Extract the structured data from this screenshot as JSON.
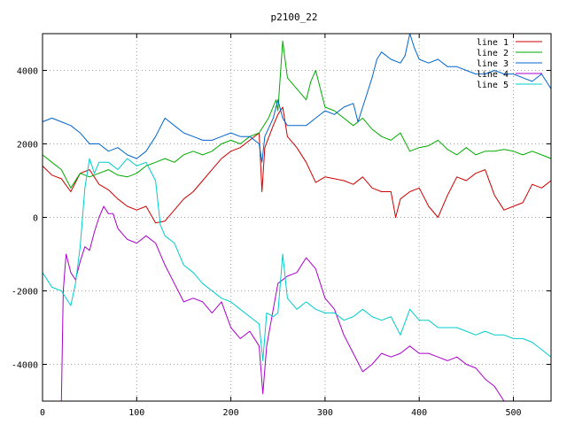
{
  "chart_data": {
    "type": "line",
    "title": "p2100_22",
    "xlim": [
      0,
      540
    ],
    "ylim": [
      -5000,
      5000
    ],
    "xticks": [
      0,
      100,
      200,
      300,
      400,
      500
    ],
    "yticks": [
      -4000,
      -2000,
      0,
      2000,
      4000
    ],
    "grid": true,
    "legend_position": "top-right",
    "series": [
      {
        "name": "line 1",
        "color": "#cc0000",
        "points": [
          [
            0,
            1400
          ],
          [
            10,
            1150
          ],
          [
            20,
            1050
          ],
          [
            30,
            700
          ],
          [
            40,
            1200
          ],
          [
            50,
            1300
          ],
          [
            60,
            900
          ],
          [
            70,
            750
          ],
          [
            80,
            500
          ],
          [
            90,
            300
          ],
          [
            100,
            200
          ],
          [
            110,
            300
          ],
          [
            120,
            -150
          ],
          [
            130,
            -100
          ],
          [
            140,
            200
          ],
          [
            150,
            500
          ],
          [
            160,
            700
          ],
          [
            170,
            1000
          ],
          [
            180,
            1300
          ],
          [
            190,
            1600
          ],
          [
            200,
            1800
          ],
          [
            210,
            1900
          ],
          [
            220,
            2100
          ],
          [
            230,
            2300
          ],
          [
            233,
            700
          ],
          [
            236,
            1900
          ],
          [
            245,
            2500
          ],
          [
            250,
            2800
          ],
          [
            255,
            3000
          ],
          [
            260,
            2200
          ],
          [
            270,
            1900
          ],
          [
            280,
            1500
          ],
          [
            290,
            950
          ],
          [
            300,
            1100
          ],
          [
            310,
            1050
          ],
          [
            320,
            1000
          ],
          [
            330,
            900
          ],
          [
            340,
            1100
          ],
          [
            350,
            800
          ],
          [
            360,
            700
          ],
          [
            370,
            700
          ],
          [
            375,
            0
          ],
          [
            380,
            500
          ],
          [
            390,
            700
          ],
          [
            400,
            800
          ],
          [
            410,
            300
          ],
          [
            420,
            0
          ],
          [
            430,
            600
          ],
          [
            440,
            1100
          ],
          [
            450,
            1000
          ],
          [
            460,
            1200
          ],
          [
            470,
            1300
          ],
          [
            480,
            600
          ],
          [
            490,
            200
          ],
          [
            500,
            300
          ],
          [
            510,
            400
          ],
          [
            520,
            900
          ],
          [
            530,
            800
          ],
          [
            540,
            1000
          ]
        ]
      },
      {
        "name": "line 2",
        "color": "#00aa00",
        "points": [
          [
            0,
            1700
          ],
          [
            10,
            1500
          ],
          [
            20,
            1300
          ],
          [
            30,
            800
          ],
          [
            40,
            1200
          ],
          [
            50,
            1100
          ],
          [
            60,
            1200
          ],
          [
            70,
            1300
          ],
          [
            80,
            1150
          ],
          [
            90,
            1100
          ],
          [
            100,
            1200
          ],
          [
            110,
            1400
          ],
          [
            120,
            1500
          ],
          [
            130,
            1600
          ],
          [
            140,
            1500
          ],
          [
            150,
            1700
          ],
          [
            160,
            1800
          ],
          [
            170,
            1700
          ],
          [
            180,
            1800
          ],
          [
            190,
            2000
          ],
          [
            200,
            2100
          ],
          [
            210,
            2000
          ],
          [
            220,
            2200
          ],
          [
            230,
            2300
          ],
          [
            240,
            2700
          ],
          [
            248,
            3200
          ],
          [
            250,
            2900
          ],
          [
            255,
            4800
          ],
          [
            260,
            3800
          ],
          [
            270,
            3500
          ],
          [
            280,
            3200
          ],
          [
            285,
            3700
          ],
          [
            290,
            4000
          ],
          [
            300,
            3000
          ],
          [
            310,
            2900
          ],
          [
            320,
            2700
          ],
          [
            330,
            2500
          ],
          [
            340,
            2700
          ],
          [
            350,
            2400
          ],
          [
            360,
            2200
          ],
          [
            370,
            2100
          ],
          [
            380,
            2300
          ],
          [
            390,
            1800
          ],
          [
            400,
            1900
          ],
          [
            410,
            1950
          ],
          [
            420,
            2100
          ],
          [
            430,
            1850
          ],
          [
            440,
            1700
          ],
          [
            450,
            1900
          ],
          [
            460,
            1700
          ],
          [
            470,
            1800
          ],
          [
            480,
            1800
          ],
          [
            490,
            1850
          ],
          [
            500,
            1800
          ],
          [
            510,
            1700
          ],
          [
            520,
            1800
          ],
          [
            530,
            1700
          ],
          [
            540,
            1600
          ]
        ]
      },
      {
        "name": "line 3",
        "color": "#0066cc",
        "points": [
          [
            0,
            2600
          ],
          [
            10,
            2700
          ],
          [
            20,
            2600
          ],
          [
            30,
            2500
          ],
          [
            40,
            2300
          ],
          [
            50,
            2000
          ],
          [
            60,
            2000
          ],
          [
            70,
            1800
          ],
          [
            80,
            1900
          ],
          [
            90,
            1700
          ],
          [
            100,
            1600
          ],
          [
            110,
            1800
          ],
          [
            120,
            2200
          ],
          [
            130,
            2700
          ],
          [
            140,
            2500
          ],
          [
            150,
            2300
          ],
          [
            160,
            2200
          ],
          [
            170,
            2100
          ],
          [
            180,
            2100
          ],
          [
            190,
            2200
          ],
          [
            200,
            2300
          ],
          [
            210,
            2200
          ],
          [
            220,
            2200
          ],
          [
            230,
            2000
          ],
          [
            233,
            1500
          ],
          [
            236,
            2200
          ],
          [
            245,
            2700
          ],
          [
            250,
            3200
          ],
          [
            255,
            2700
          ],
          [
            260,
            2500
          ],
          [
            270,
            2500
          ],
          [
            280,
            2500
          ],
          [
            290,
            2700
          ],
          [
            300,
            2900
          ],
          [
            310,
            2800
          ],
          [
            320,
            3000
          ],
          [
            330,
            3100
          ],
          [
            335,
            2600
          ],
          [
            340,
            3000
          ],
          [
            350,
            3800
          ],
          [
            355,
            4300
          ],
          [
            360,
            4500
          ],
          [
            370,
            4300
          ],
          [
            380,
            4200
          ],
          [
            385,
            4400
          ],
          [
            390,
            5000
          ],
          [
            395,
            4600
          ],
          [
            400,
            4300
          ],
          [
            410,
            4200
          ],
          [
            420,
            4300
          ],
          [
            430,
            4100
          ],
          [
            440,
            4100
          ],
          [
            450,
            4000
          ],
          [
            460,
            3900
          ],
          [
            470,
            3900
          ],
          [
            480,
            4000
          ],
          [
            490,
            3900
          ],
          [
            500,
            3900
          ],
          [
            510,
            3800
          ],
          [
            520,
            3700
          ],
          [
            530,
            3900
          ],
          [
            540,
            3500
          ]
        ]
      },
      {
        "name": "line 4",
        "color": "#aa00cc",
        "points": [
          [
            20,
            -5000
          ],
          [
            22,
            -2000
          ],
          [
            25,
            -1000
          ],
          [
            30,
            -1500
          ],
          [
            35,
            -1700
          ],
          [
            40,
            -1200
          ],
          [
            45,
            -800
          ],
          [
            50,
            -900
          ],
          [
            55,
            -400
          ],
          [
            60,
            0
          ],
          [
            65,
            300
          ],
          [
            70,
            100
          ],
          [
            75,
            100
          ],
          [
            80,
            -300
          ],
          [
            90,
            -600
          ],
          [
            100,
            -700
          ],
          [
            110,
            -500
          ],
          [
            120,
            -700
          ],
          [
            130,
            -1300
          ],
          [
            140,
            -1800
          ],
          [
            150,
            -2300
          ],
          [
            160,
            -2200
          ],
          [
            170,
            -2300
          ],
          [
            180,
            -2600
          ],
          [
            190,
            -2300
          ],
          [
            200,
            -3000
          ],
          [
            210,
            -3300
          ],
          [
            220,
            -3100
          ],
          [
            230,
            -3500
          ],
          [
            234,
            -4800
          ],
          [
            238,
            -3500
          ],
          [
            245,
            -2500
          ],
          [
            250,
            -1800
          ],
          [
            260,
            -1600
          ],
          [
            270,
            -1500
          ],
          [
            280,
            -1100
          ],
          [
            290,
            -1400
          ],
          [
            300,
            -2200
          ],
          [
            310,
            -2500
          ],
          [
            320,
            -3200
          ],
          [
            330,
            -3700
          ],
          [
            340,
            -4200
          ],
          [
            350,
            -4000
          ],
          [
            360,
            -3700
          ],
          [
            370,
            -3800
          ],
          [
            380,
            -3700
          ],
          [
            390,
            -3500
          ],
          [
            400,
            -3700
          ],
          [
            410,
            -3700
          ],
          [
            420,
            -3800
          ],
          [
            430,
            -3900
          ],
          [
            440,
            -3800
          ],
          [
            450,
            -4000
          ],
          [
            460,
            -4100
          ],
          [
            470,
            -4400
          ],
          [
            480,
            -4600
          ],
          [
            490,
            -5000
          ]
        ]
      },
      {
        "name": "line 5",
        "color": "#00cccc",
        "points": [
          [
            0,
            -1500
          ],
          [
            10,
            -1900
          ],
          [
            20,
            -2000
          ],
          [
            30,
            -2400
          ],
          [
            35,
            -1800
          ],
          [
            40,
            -800
          ],
          [
            45,
            800
          ],
          [
            50,
            1600
          ],
          [
            55,
            1200
          ],
          [
            60,
            1500
          ],
          [
            70,
            1500
          ],
          [
            80,
            1300
          ],
          [
            90,
            1600
          ],
          [
            100,
            1400
          ],
          [
            110,
            1500
          ],
          [
            120,
            1000
          ],
          [
            125,
            -200
          ],
          [
            130,
            -500
          ],
          [
            140,
            -700
          ],
          [
            150,
            -1300
          ],
          [
            160,
            -1500
          ],
          [
            170,
            -1800
          ],
          [
            180,
            -2000
          ],
          [
            190,
            -2200
          ],
          [
            200,
            -2300
          ],
          [
            210,
            -2500
          ],
          [
            220,
            -2700
          ],
          [
            230,
            -2900
          ],
          [
            234,
            -3900
          ],
          [
            238,
            -2600
          ],
          [
            245,
            -2700
          ],
          [
            250,
            -2600
          ],
          [
            255,
            -1000
          ],
          [
            260,
            -2200
          ],
          [
            270,
            -2500
          ],
          [
            280,
            -2300
          ],
          [
            290,
            -2500
          ],
          [
            300,
            -2600
          ],
          [
            310,
            -2600
          ],
          [
            320,
            -2800
          ],
          [
            330,
            -2700
          ],
          [
            340,
            -2500
          ],
          [
            350,
            -2700
          ],
          [
            360,
            -2800
          ],
          [
            370,
            -2700
          ],
          [
            380,
            -3200
          ],
          [
            390,
            -2500
          ],
          [
            400,
            -2800
          ],
          [
            410,
            -2800
          ],
          [
            420,
            -3000
          ],
          [
            430,
            -3000
          ],
          [
            440,
            -3000
          ],
          [
            450,
            -3100
          ],
          [
            460,
            -3200
          ],
          [
            470,
            -3100
          ],
          [
            480,
            -3200
          ],
          [
            490,
            -3200
          ],
          [
            500,
            -3300
          ],
          [
            510,
            -3300
          ],
          [
            520,
            -3400
          ],
          [
            530,
            -3600
          ],
          [
            540,
            -3800
          ]
        ]
      }
    ]
  }
}
